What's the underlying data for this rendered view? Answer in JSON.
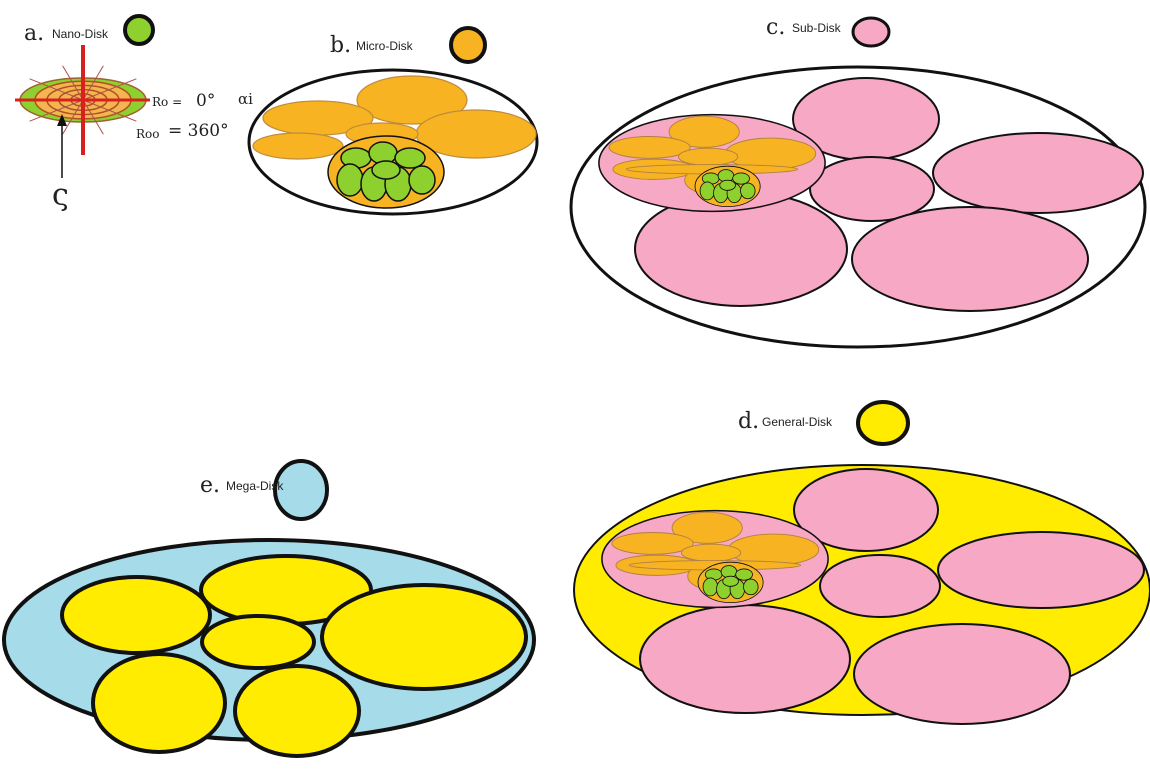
{
  "colors": {
    "nano": "#8ed12f",
    "micro": "#f7b322",
    "sub": "#f7a8c4",
    "general": "#ffec00",
    "mega": "#a6dbe9",
    "outline": "#111111",
    "axis": "#d82020"
  },
  "disks": {
    "nano": {
      "letter": "a.",
      "name": "Nano-Disk"
    },
    "micro": {
      "letter": "b.",
      "name": "Micro-Disk"
    },
    "sub": {
      "letter": "c.",
      "name": "Sub-Disk"
    },
    "general": {
      "letter": "d.",
      "name": "General-Disk"
    },
    "mega": {
      "letter": "e.",
      "name": "Mega-Disk"
    }
  },
  "nano_annotations": {
    "ro": "Ro =",
    "ro_value": "0°",
    "alpha": "αi",
    "roo": "Roo",
    "roo_value": "= 360°",
    "zeta": "ς"
  }
}
